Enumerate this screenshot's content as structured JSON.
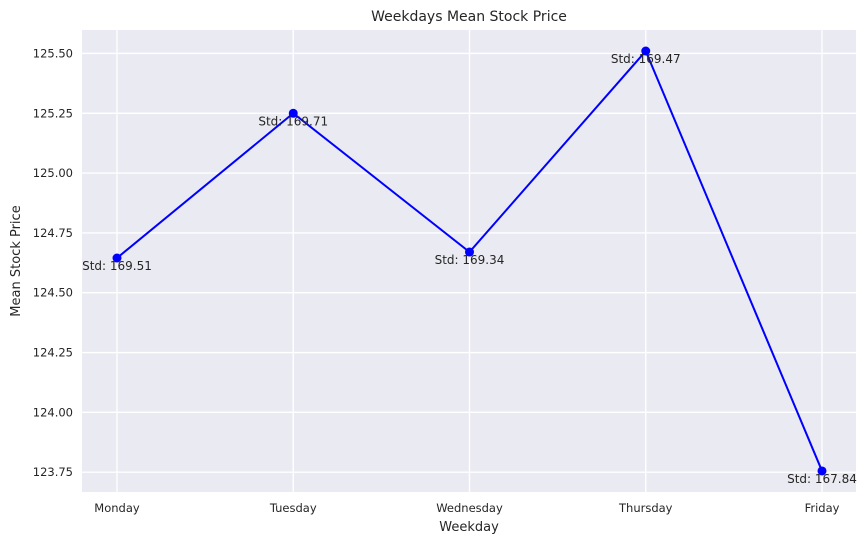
{
  "chart_data": {
    "type": "line",
    "title": "Weekdays Mean Stock Price",
    "xlabel": "Weekday",
    "ylabel": "Mean Stock Price",
    "categories": [
      "Monday",
      "Tuesday",
      "Wednesday",
      "Thursday",
      "Friday"
    ],
    "series": [
      {
        "values": [
          124.645,
          125.25,
          124.67,
          125.51,
          123.755
        ],
        "color": "#0000ff",
        "marker": "circle"
      }
    ],
    "annotations": [
      "Std: 169.51",
      "Std: 169.71",
      "Std: 169.34",
      "Std: 169.47",
      "Std: 167.84"
    ],
    "yticks": [
      "123.75",
      "124.00",
      "124.25",
      "124.50",
      "124.75",
      "125.00",
      "125.25",
      "125.50"
    ],
    "ytick_values": [
      123.75,
      124.0,
      124.25,
      124.5,
      124.75,
      125.0,
      125.25,
      125.5
    ],
    "ylim": [
      123.667,
      125.598
    ],
    "grid": true,
    "background": "#eaeaf2",
    "grid_color": "#ffffff"
  }
}
